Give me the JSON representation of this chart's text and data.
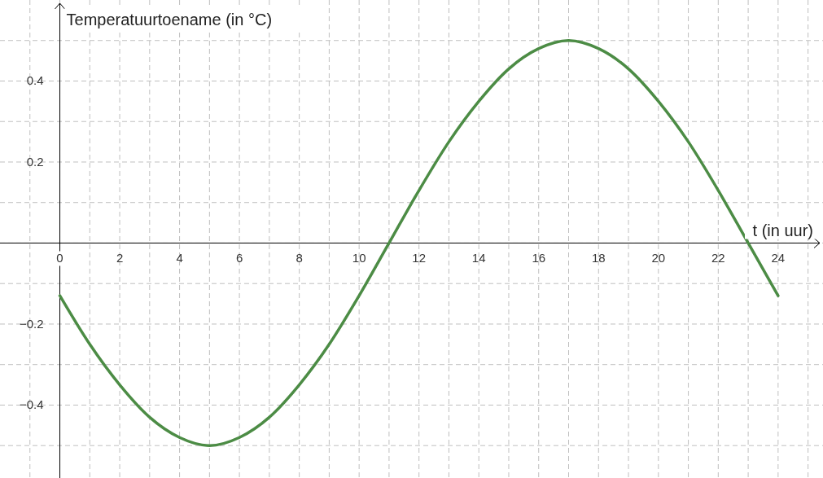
{
  "chart_data": {
    "type": "line",
    "xlabel": "t (in uur)",
    "ylabel": "Temperatuurtoename (in °C)",
    "x": [
      0,
      1,
      2,
      3,
      4,
      5,
      6,
      7,
      8,
      9,
      10,
      11,
      12,
      13,
      14,
      15,
      16,
      17,
      18,
      19,
      20,
      21,
      22,
      23,
      24
    ],
    "series": [
      {
        "color": "#4c8c45",
        "values": [
          -0.13,
          -0.25,
          -0.35,
          -0.43,
          -0.48,
          -0.5,
          -0.48,
          -0.43,
          -0.35,
          -0.25,
          -0.13,
          0,
          0.13,
          0.25,
          0.35,
          0.43,
          0.48,
          0.5,
          0.48,
          0.43,
          0.35,
          0.25,
          0.13,
          0,
          -0.13
        ]
      }
    ],
    "xlim": [
      -2,
      25.5
    ],
    "ylim": [
      -0.58,
      0.6
    ],
    "xticks": [
      {
        "value": -1,
        "label": null
      },
      0,
      {
        "value": 1,
        "label": null
      },
      2,
      {
        "value": 3,
        "label": null
      },
      4,
      {
        "value": 5,
        "label": null
      },
      6,
      {
        "value": 7,
        "label": null
      },
      8,
      {
        "value": 9,
        "label": null
      },
      10,
      {
        "value": 11,
        "label": null
      },
      12,
      {
        "value": 13,
        "label": null
      },
      14,
      {
        "value": 15,
        "label": null
      },
      16,
      {
        "value": 17,
        "label": null
      },
      18,
      {
        "value": 19,
        "label": null
      },
      20,
      {
        "value": 21,
        "label": null
      },
      22,
      {
        "value": 23,
        "label": null
      },
      24,
      {
        "value": 25,
        "label": null
      }
    ],
    "yticks": [
      {
        "value": -0.5,
        "label": null
      },
      {
        "value": -0.4,
        "label": "−0.4"
      },
      {
        "value": -0.3,
        "label": null
      },
      {
        "value": -0.2,
        "label": "−0.2"
      },
      {
        "value": -0.1,
        "label": null
      },
      {
        "value": 0,
        "label": null
      },
      {
        "value": 0.1,
        "label": null
      },
      0.2,
      {
        "value": 0.3,
        "label": null
      },
      0.4,
      {
        "value": 0.5,
        "label": null
      }
    ],
    "grid": true,
    "line_style": "solid"
  }
}
